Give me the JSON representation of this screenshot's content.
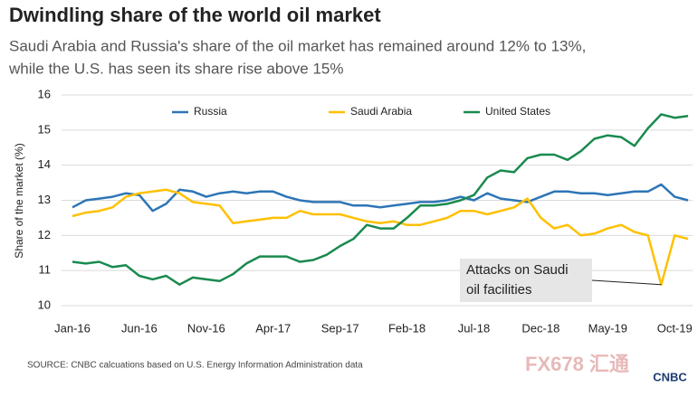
{
  "chart_data": {
    "type": "line",
    "title": "Dwindling share of the world oil market",
    "subtitle": [
      "Saudi Arabia and Russia's share of the oil market has remained around 12% to 13%,",
      "while the U.S. has seen its share rise above 15%"
    ],
    "ylabel": "Share of the market (%)",
    "source": "SOURCE: CNBC calcuations based on U.S. Energy Information Administration data",
    "watermark": "FX678 汇通",
    "logo": "CNBC",
    "annotation": {
      "lines": [
        "Attacks on Saudi",
        "oil facilities"
      ],
      "series": 1,
      "index": 44
    },
    "categories": [
      "Jan-16",
      null,
      null,
      null,
      null,
      "Jun-16",
      null,
      null,
      null,
      null,
      "Nov-16",
      null,
      null,
      null,
      null,
      "Apr-17",
      null,
      null,
      null,
      null,
      "Sep-17",
      null,
      null,
      null,
      null,
      "Feb-18",
      null,
      null,
      null,
      null,
      "Jul-18",
      null,
      null,
      null,
      null,
      "Dec-18",
      null,
      null,
      null,
      null,
      "May-19",
      null,
      null,
      null,
      null,
      "Oct-19",
      null
    ],
    "series": [
      {
        "name": "Russia",
        "color": "#2e75b6",
        "values": [
          12.8,
          13.0,
          13.05,
          13.1,
          13.2,
          13.15,
          12.7,
          12.9,
          13.3,
          13.25,
          13.1,
          13.2,
          13.25,
          13.2,
          13.25,
          13.25,
          13.1,
          13.0,
          12.95,
          12.95,
          12.95,
          12.85,
          12.85,
          12.8,
          12.85,
          12.9,
          12.95,
          12.95,
          13.0,
          13.1,
          13.0,
          13.2,
          13.05,
          13.0,
          12.95,
          13.1,
          13.25,
          13.25,
          13.2,
          13.2,
          13.15,
          13.2,
          13.25,
          13.25,
          13.45,
          13.1,
          13.0
        ]
      },
      {
        "name": "Saudi Arabia",
        "color": "#ffc000",
        "values": [
          12.55,
          12.65,
          12.7,
          12.8,
          13.1,
          13.2,
          13.25,
          13.3,
          13.2,
          12.95,
          12.9,
          12.85,
          12.35,
          12.4,
          12.45,
          12.5,
          12.5,
          12.7,
          12.6,
          12.6,
          12.6,
          12.5,
          12.4,
          12.35,
          12.4,
          12.3,
          12.3,
          12.4,
          12.5,
          12.7,
          12.7,
          12.6,
          12.7,
          12.8,
          13.05,
          12.5,
          12.2,
          12.3,
          12.0,
          12.05,
          12.2,
          12.3,
          12.1,
          12.0,
          10.6,
          12.0,
          11.9
        ]
      },
      {
        "name": "United States",
        "color": "#1a8a4f",
        "values": [
          11.25,
          11.2,
          11.25,
          11.1,
          11.15,
          10.85,
          10.75,
          10.85,
          10.6,
          10.8,
          10.75,
          10.7,
          10.9,
          11.2,
          11.4,
          11.4,
          11.4,
          11.25,
          11.3,
          11.45,
          11.7,
          11.9,
          12.3,
          12.2,
          12.2,
          12.5,
          12.85,
          12.85,
          12.9,
          13.0,
          13.15,
          13.65,
          13.85,
          13.8,
          14.2,
          14.3,
          14.3,
          14.15,
          14.4,
          14.75,
          14.85,
          14.8,
          14.55,
          15.05,
          15.45,
          15.35,
          15.4
        ]
      }
    ],
    "ylim": [
      10,
      16
    ],
    "yticks": [
      10,
      11,
      12,
      13,
      14,
      15,
      16
    ],
    "grid": true,
    "legend": "top"
  }
}
